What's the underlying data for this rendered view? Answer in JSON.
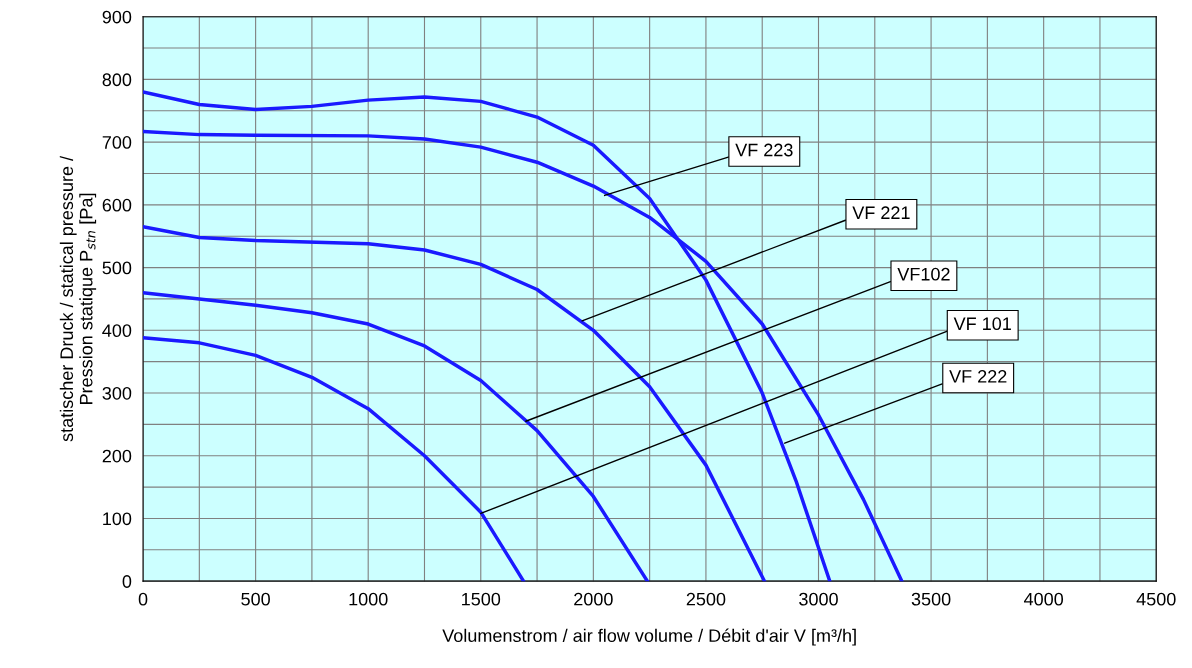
{
  "chart_data": {
    "type": "line",
    "xlabel": "Volumenstrom / air flow volume / Débit d'air V [m³/h]",
    "ylabel": "statischer Druck / statical pressure /\nPression statique P$_{stn}$ [Pa]",
    "xlim": [
      0,
      4500
    ],
    "ylim": [
      0,
      900
    ],
    "xticks": [
      0,
      {
        "value": 250,
        "label": null
      },
      500,
      {
        "value": 750,
        "label": null
      },
      1000,
      {
        "value": 1250,
        "label": null
      },
      1500,
      {
        "value": 1750,
        "label": null
      },
      2000,
      {
        "value": 2250,
        "label": null
      },
      2500,
      {
        "value": 2750,
        "label": null
      },
      3000,
      {
        "value": 3250,
        "label": null
      },
      3500,
      {
        "value": 3750,
        "label": null
      },
      4000,
      {
        "value": 4250,
        "label": null
      },
      4500
    ],
    "yticks": [
      0,
      {
        "value": 50,
        "label": null
      },
      100,
      {
        "value": 150,
        "label": null
      },
      200,
      {
        "value": 250,
        "label": null
      },
      300,
      {
        "value": 350,
        "label": null
      },
      400,
      {
        "value": 450,
        "label": null
      },
      500,
      {
        "value": 550,
        "label": null
      },
      600,
      {
        "value": 650,
        "label": null
      },
      700,
      {
        "value": 750,
        "label": null
      },
      800,
      {
        "value": 850,
        "label": null
      },
      900
    ],
    "grid": true,
    "marker": "none",
    "line_style": "solid",
    "series": [
      {
        "color": "#1a1aff",
        "x": [
          0,
          250,
          500,
          750,
          1000,
          1250,
          1500,
          1690
        ],
        "values": [
          388,
          380,
          360,
          325,
          275,
          200,
          110,
          0
        ]
      },
      {
        "color": "#1a1aff",
        "x": [
          0,
          250,
          500,
          750,
          1000,
          1250,
          1500,
          1750,
          2000,
          2240
        ],
        "values": [
          460,
          450,
          440,
          428,
          410,
          375,
          320,
          240,
          135,
          0
        ]
      },
      {
        "color": "#1a1aff",
        "x": [
          0,
          250,
          500,
          1000,
          1250,
          1500,
          1750,
          2000,
          2250,
          2500,
          2760
        ],
        "values": [
          565,
          548,
          543,
          538,
          528,
          505,
          465,
          400,
          310,
          185,
          0
        ]
      },
      {
        "color": "#1a1aff",
        "x": [
          0,
          250,
          500,
          1000,
          1250,
          1500,
          1750,
          2000,
          2250,
          2500,
          2750,
          3000,
          3200,
          3370
        ],
        "values": [
          717,
          712,
          711,
          710,
          705,
          692,
          668,
          630,
          580,
          510,
          410,
          265,
          130,
          0
        ]
      },
      {
        "color": "#1a1aff",
        "x": [
          0,
          250,
          500,
          750,
          1000,
          1250,
          1500,
          1750,
          2000,
          2250,
          2500,
          2750,
          2900,
          3050
        ],
        "values": [
          780,
          760,
          752,
          757,
          767,
          772,
          765,
          740,
          695,
          610,
          480,
          300,
          160,
          0
        ]
      }
    ],
    "annotations": [
      {
        "text": "VF 223",
        "x": 2050,
        "y": 615
      },
      {
        "text": "VF 221",
        "x": 1950,
        "y": 415
      },
      {
        "text": "VF102",
        "x": 1700,
        "y": 255
      },
      {
        "text": "VF 101",
        "x": 1500,
        "y": 108
      },
      {
        "text": "VF 222",
        "x": 2850,
        "y": 220
      }
    ]
  }
}
